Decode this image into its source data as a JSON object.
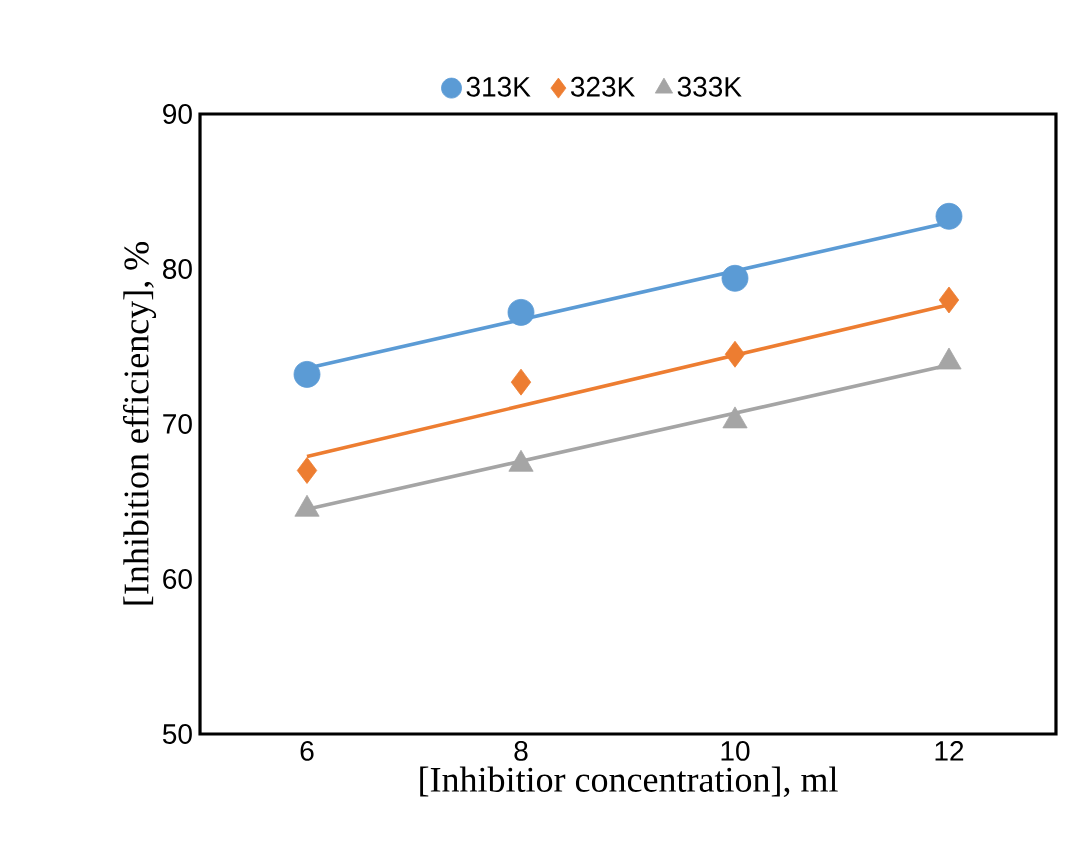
{
  "chart_data": {
    "type": "line",
    "xlabel": "[Inhibitior concentration], ml",
    "ylabel": "[Inhibition efficiency], %",
    "xlim": [
      5,
      13
    ],
    "xticks": [
      6,
      8,
      10,
      12
    ],
    "ylim": [
      50,
      90
    ],
    "yticks": [
      50,
      60,
      70,
      80,
      90
    ],
    "grid": false,
    "legend": "top",
    "series": [
      {
        "name": "313K",
        "type": "scatter",
        "marker": "circle",
        "color": "#5b9bd5",
        "x": [
          6,
          8,
          10,
          12
        ],
        "values": [
          73.2,
          77.2,
          79.4,
          83.4
        ]
      },
      {
        "name": "323K",
        "type": "scatter",
        "marker": "diamond",
        "color": "#ed7d31",
        "x": [
          6,
          8,
          10,
          12
        ],
        "values": [
          67.0,
          72.7,
          74.5,
          78.0
        ]
      },
      {
        "name": "333K",
        "type": "scatter",
        "marker": "triangle",
        "color": "#a5a5a5",
        "x": [
          6,
          8,
          10,
          12
        ],
        "values": [
          64.5,
          67.4,
          70.2,
          74.0
        ]
      },
      {
        "marker": "none",
        "color": "#5b9bd5",
        "x": [
          6,
          12
        ],
        "values": [
          73.6,
          83.0
        ]
      },
      {
        "marker": "none",
        "color": "#ed7d31",
        "x": [
          6,
          12
        ],
        "values": [
          67.9,
          77.7
        ]
      },
      {
        "marker": "none",
        "color": "#a5a5a5",
        "x": [
          6,
          12
        ],
        "values": [
          64.5,
          73.8
        ]
      }
    ]
  }
}
